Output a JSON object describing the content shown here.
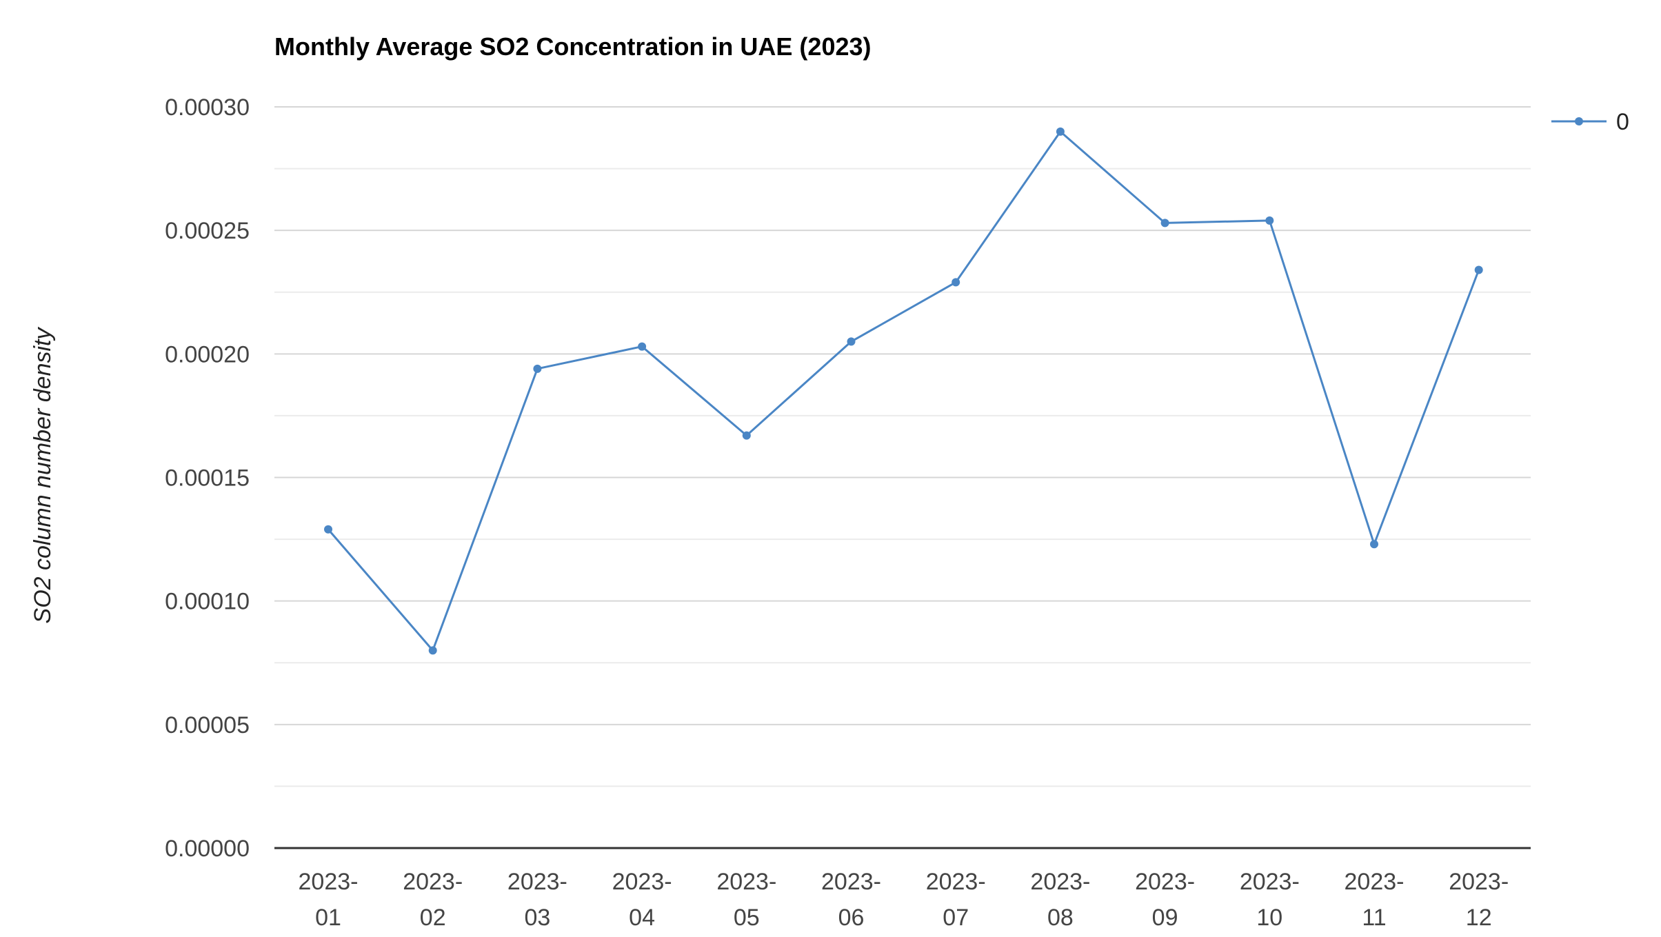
{
  "chart_data": {
    "type": "line",
    "title": "Monthly Average SO2 Concentration in UAE (2023)",
    "xlabel": "",
    "ylabel": "SO2 column number density",
    "categories": [
      "2023-01",
      "2023-02",
      "2023-03",
      "2023-04",
      "2023-05",
      "2023-06",
      "2023-07",
      "2023-08",
      "2023-09",
      "2023-10",
      "2023-11",
      "2023-12"
    ],
    "series": [
      {
        "name": "0",
        "values": [
          0.000129,
          8e-05,
          0.000194,
          0.000203,
          0.000167,
          0.000205,
          0.000229,
          0.00029,
          0.000253,
          0.000254,
          0.000123,
          0.000234
        ]
      }
    ],
    "ylim": [
      0,
      0.0003
    ],
    "y_ticks": [
      "0.00000",
      "0.00005",
      "0.00010",
      "0.00015",
      "0.00020",
      "0.00025",
      "0.00030"
    ],
    "grid": true,
    "legend_position": "top-right",
    "colors": {
      "series": "#4a86c5",
      "grid_major": "#d6d6d6",
      "grid_minor": "#ebebeb",
      "axis": "#333333"
    }
  }
}
